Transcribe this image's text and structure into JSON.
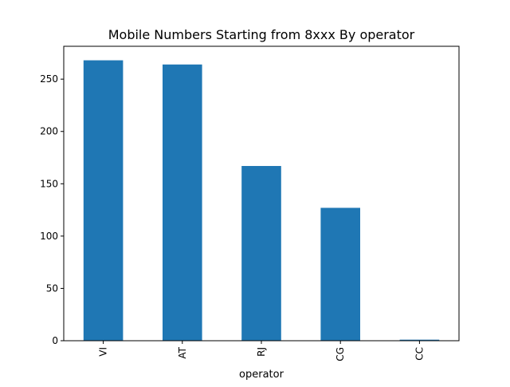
{
  "chart_data": {
    "type": "bar",
    "title": "Mobile Numbers Starting from 8xxx By operator",
    "xlabel": "operator",
    "ylabel": "",
    "categories": [
      "VI",
      "AT",
      "RJ",
      "CG",
      "CC"
    ],
    "values": [
      268,
      264,
      167,
      127,
      1
    ],
    "ylim": [
      0,
      281.4
    ],
    "yticks": [
      0,
      50,
      100,
      150,
      200,
      250
    ],
    "ytick_labels": [
      "0",
      "50",
      "100",
      "150",
      "200",
      "250"
    ],
    "bar_color": "#1f77b4",
    "grid": false,
    "xtick_rotation": "vertical"
  }
}
